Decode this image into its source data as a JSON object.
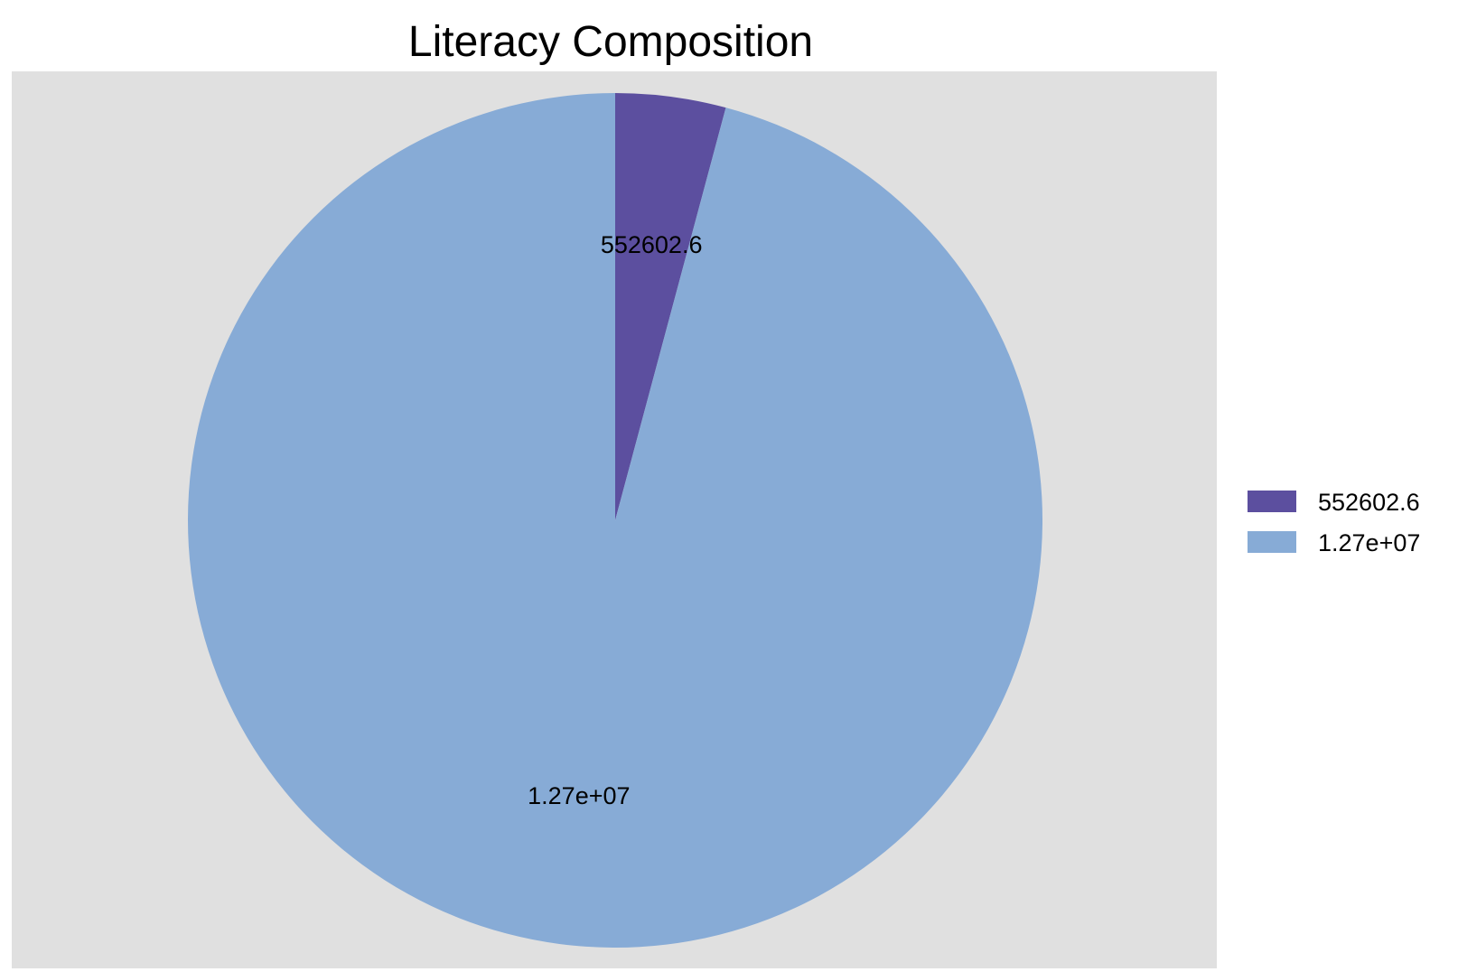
{
  "chart_data": {
    "type": "pie",
    "title": "Literacy Composition",
    "start_angle_deg": 0,
    "direction": "clockwise",
    "panel_background": "#e0e0e0",
    "legend_position": "right",
    "slices": [
      {
        "label": "552602.6",
        "value": 552602.6,
        "color": "#5c4f9f"
      },
      {
        "label": "1.27e+07",
        "value": 12700000,
        "color": "#87abd6"
      }
    ],
    "legend": {
      "entries": [
        "552602.6",
        "1.27e+07"
      ]
    }
  }
}
